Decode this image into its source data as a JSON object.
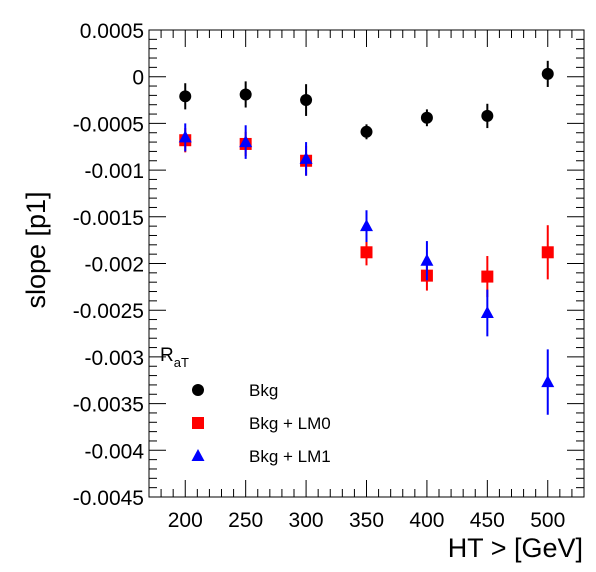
{
  "chart_data": {
    "type": "scatter",
    "xlabel": "HT > [GeV]",
    "ylabel": "slope [p1]",
    "xlim": [
      170,
      530
    ],
    "ylim": [
      -0.0045,
      0.0005
    ],
    "xticks": [
      200,
      250,
      300,
      350,
      400,
      450,
      500
    ],
    "xtick_labels": [
      "200",
      "250",
      "300",
      "350",
      "400",
      "450",
      "500"
    ],
    "yticks": [
      -0.0045,
      -0.004,
      -0.0035,
      -0.003,
      -0.0025,
      -0.002,
      -0.0015,
      -0.001,
      -0.0005,
      0,
      0.0005
    ],
    "ytick_labels": [
      "-0.0045",
      "-0.004",
      "-0.0035",
      "-0.003",
      "-0.0025",
      "-0.002",
      "-0.0015",
      "-0.001",
      "-0.0005",
      "0",
      "0.0005"
    ],
    "grid": false,
    "legend": {
      "header": "R",
      "header_sub": "aT",
      "placement": "bottom-left"
    },
    "series": [
      {
        "name": "Bkg",
        "marker": "circle",
        "color": "#000000",
        "x": [
          200,
          250,
          300,
          350,
          400,
          450,
          500
        ],
        "y": [
          -0.00021,
          -0.00019,
          -0.00025,
          -0.00059,
          -0.00044,
          -0.00042,
          3e-05
        ],
        "err": [
          0.00014,
          0.00014,
          0.00017,
          8e-05,
          9e-05,
          0.00013,
          0.00014
        ]
      },
      {
        "name": "Bkg + LM0",
        "marker": "square",
        "color": "#ff0000",
        "x": [
          200,
          250,
          300,
          350,
          400,
          450,
          500
        ],
        "y": [
          -0.00068,
          -0.00072,
          -0.0009,
          -0.00188,
          -0.00213,
          -0.00214,
          -0.00188
        ],
        "err": [
          0.00013,
          0.00013,
          0.00016,
          0.00014,
          0.00016,
          0.00022,
          0.00029
        ]
      },
      {
        "name": "Bkg + LM1",
        "marker": "triangle",
        "color": "#0000ff",
        "x": [
          200,
          250,
          300,
          350,
          400,
          450,
          500
        ],
        "y": [
          -0.00065,
          -0.0007,
          -0.00088,
          -0.0016,
          -0.00197,
          -0.00253,
          -0.00327
        ],
        "err": [
          0.00015,
          0.00018,
          0.00018,
          0.00017,
          0.00021,
          0.00025,
          0.00035
        ]
      }
    ]
  }
}
